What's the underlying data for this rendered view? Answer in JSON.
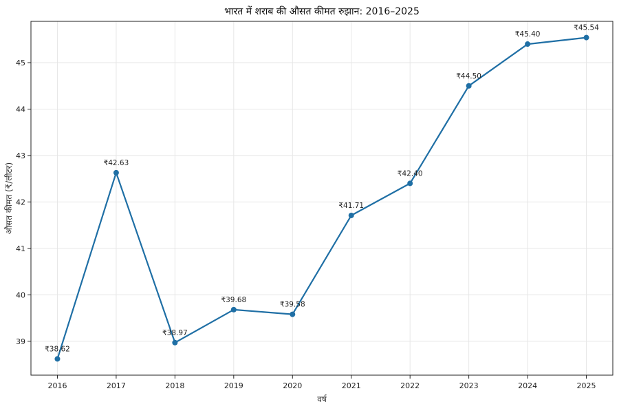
{
  "chart_data": {
    "type": "line",
    "title": "भारत में शराब की औसत कीमत रुझान: 2016–2025",
    "xlabel": "वर्ष",
    "ylabel": "औसत कीमत (₹/लीटर)",
    "x": [
      2016,
      2017,
      2018,
      2019,
      2020,
      2021,
      2022,
      2023,
      2024,
      2025
    ],
    "xticks": [
      "2016",
      "2017",
      "2018",
      "2019",
      "2020",
      "2021",
      "2022",
      "2023",
      "2024",
      "2025"
    ],
    "yticks": [
      "39",
      "40",
      "41",
      "42",
      "43",
      "44",
      "45"
    ],
    "ytick_values": [
      39,
      40,
      41,
      42,
      43,
      44,
      45
    ],
    "xlim": [
      2015.55,
      2025.45
    ],
    "ylim": [
      38.27,
      45.89
    ],
    "grid": true,
    "series": [
      {
        "values": [
          38.62,
          42.63,
          38.97,
          39.68,
          39.58,
          41.71,
          42.4,
          44.5,
          45.4,
          45.54
        ],
        "labels": [
          "₹38.62",
          "₹42.63",
          "₹38.97",
          "₹39.68",
          "₹39.58",
          "₹41.71",
          "₹42.40",
          "₹44.50",
          "₹45.40",
          "₹45.54"
        ],
        "color": "#1f6fa5"
      }
    ]
  }
}
